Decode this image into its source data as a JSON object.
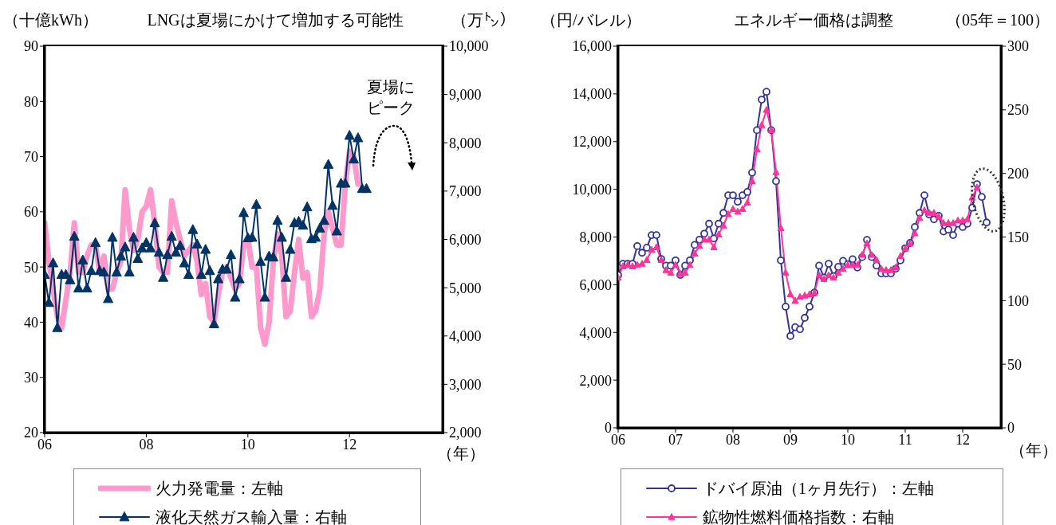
{
  "chart_data": [
    {
      "type": "line",
      "title": "LNGは夏場にかけて増加する可能性",
      "ylabel": "（十億kWh）",
      "y2label": "（万㌧）",
      "xlabel": "（年）",
      "legend": "bottom",
      "annotations": [
        "夏場にピーク"
      ],
      "xlim": [
        "2006-01",
        "2013-11"
      ],
      "xticks": [
        {
          "value": "2006-01",
          "label": "06"
        },
        {
          "value": "2008-01",
          "label": "08"
        },
        {
          "value": "2010-01",
          "label": "10"
        },
        {
          "value": "2012-01",
          "label": "12"
        }
      ],
      "ylim": [
        20,
        90
      ],
      "yticks": [
        20,
        30,
        40,
        50,
        60,
        70,
        80,
        90
      ],
      "y2lim": [
        2000,
        10000
      ],
      "y2ticks": [
        {
          "value": 2000,
          "label": "2,000"
        },
        {
          "value": 3000,
          "label": "3,000"
        },
        {
          "value": 4000,
          "label": "4,000"
        },
        {
          "value": 5000,
          "label": "5,000"
        },
        {
          "value": 6000,
          "label": "6,000"
        },
        {
          "value": 7000,
          "label": "7,000"
        },
        {
          "value": 8000,
          "label": "8,000"
        },
        {
          "value": 9000,
          "label": "9,000"
        },
        {
          "value": 10000,
          "label": "10,000"
        }
      ],
      "series": [
        {
          "name": "火力発電量：左軸",
          "color": "#ff99cc",
          "marker": "none",
          "x": [
            "2006-01",
            "2006-02",
            "2006-03",
            "2006-04",
            "2006-05",
            "2006-06",
            "2006-07",
            "2006-08",
            "2006-09",
            "2006-10",
            "2006-11",
            "2006-12",
            "2007-01",
            "2007-02",
            "2007-03",
            "2007-04",
            "2007-05",
            "2007-06",
            "2007-07",
            "2007-08",
            "2007-09",
            "2007-10",
            "2007-11",
            "2007-12",
            "2008-01",
            "2008-02",
            "2008-03",
            "2008-04",
            "2008-05",
            "2008-06",
            "2008-07",
            "2008-08",
            "2008-09",
            "2008-10",
            "2008-11",
            "2008-12",
            "2009-01",
            "2009-02",
            "2009-03",
            "2009-04",
            "2009-05",
            "2009-06",
            "2009-07",
            "2009-08",
            "2009-09",
            "2009-10",
            "2009-11",
            "2009-12",
            "2010-01",
            "2010-02",
            "2010-03",
            "2010-04",
            "2010-05",
            "2010-06",
            "2010-07",
            "2010-08",
            "2010-09",
            "2010-10",
            "2010-11",
            "2010-12",
            "2011-01",
            "2011-02",
            "2011-03",
            "2011-04",
            "2011-05",
            "2011-06",
            "2011-07",
            "2011-08",
            "2011-09",
            "2011-10",
            "2011-11",
            "2011-12",
            "2012-01",
            "2012-02",
            "2012-03"
          ],
          "values": [
            58,
            51,
            46,
            41,
            39,
            44,
            49,
            58,
            49,
            49,
            52,
            54,
            54,
            49,
            52,
            46,
            46,
            49,
            51,
            64,
            57,
            53,
            55,
            60,
            61,
            64,
            58,
            50,
            49,
            49,
            62,
            58,
            55,
            52,
            53,
            54,
            51,
            45,
            47,
            41,
            40,
            45,
            49,
            50,
            48,
            46,
            47,
            54,
            55,
            50,
            50,
            39,
            36,
            40,
            51,
            56,
            52,
            41,
            42,
            49,
            55,
            48,
            49,
            41,
            42,
            46,
            56,
            60,
            57,
            54,
            54,
            65,
            71,
            70,
            65
          ]
        },
        {
          "name": "液化天然ガス輸入量：右軸",
          "color": "#003366",
          "marker": "triangle",
          "axis": "y2",
          "x": [
            "2006-01",
            "2006-02",
            "2006-03",
            "2006-04",
            "2006-05",
            "2006-06",
            "2006-07",
            "2006-08",
            "2006-09",
            "2006-10",
            "2006-11",
            "2006-12",
            "2007-01",
            "2007-02",
            "2007-03",
            "2007-04",
            "2007-05",
            "2007-06",
            "2007-07",
            "2007-08",
            "2007-09",
            "2007-10",
            "2007-11",
            "2007-12",
            "2008-01",
            "2008-02",
            "2008-03",
            "2008-04",
            "2008-05",
            "2008-06",
            "2008-07",
            "2008-08",
            "2008-09",
            "2008-10",
            "2008-11",
            "2008-12",
            "2009-01",
            "2009-02",
            "2009-03",
            "2009-04",
            "2009-05",
            "2009-06",
            "2009-07",
            "2009-08",
            "2009-09",
            "2009-10",
            "2009-11",
            "2009-12",
            "2010-01",
            "2010-02",
            "2010-03",
            "2010-04",
            "2010-05",
            "2010-06",
            "2010-07",
            "2010-08",
            "2010-09",
            "2010-10",
            "2010-11",
            "2010-12",
            "2011-01",
            "2011-02",
            "2011-03",
            "2011-04",
            "2011-05",
            "2011-06",
            "2011-07",
            "2011-08",
            "2011-09",
            "2011-10",
            "2011-11",
            "2011-12",
            "2012-01",
            "2012-02",
            "2012-03",
            "2012-04",
            "2012-05"
          ],
          "values": [
            5270,
            4690,
            5510,
            4170,
            5270,
            5270,
            5160,
            6060,
            4990,
            5570,
            4990,
            5350,
            5930,
            5350,
            5320,
            4770,
            6040,
            5320,
            5650,
            5840,
            5320,
            6040,
            5600,
            5820,
            5930,
            5820,
            6340,
            5730,
            5210,
            5680,
            6060,
            5730,
            5870,
            5510,
            5270,
            6200,
            5900,
            5270,
            5790,
            5350,
            4250,
            5180,
            5380,
            5380,
            5680,
            4800,
            5180,
            6550,
            6030,
            6040,
            6720,
            5540,
            4800,
            5650,
            5630,
            6390,
            6040,
            5210,
            5790,
            6340,
            6370,
            6290,
            6670,
            6010,
            6040,
            6230,
            6390,
            7550,
            6700,
            6170,
            7160,
            7160,
            8150,
            7660,
            8100,
            7050,
            7050
          ]
        }
      ]
    },
    {
      "type": "line",
      "title": "エネルギー価格は調整",
      "ylabel": "（円/バレル）",
      "y2label": "（05年＝100）",
      "xlabel": "（年）",
      "legend": "bottom",
      "xlim": [
        "2006-01",
        "2012-09"
      ],
      "xticks": [
        {
          "value": "2006-01",
          "label": "06"
        },
        {
          "value": "2007-01",
          "label": "07"
        },
        {
          "value": "2008-01",
          "label": "08"
        },
        {
          "value": "2009-01",
          "label": "09"
        },
        {
          "value": "2010-01",
          "label": "10"
        },
        {
          "value": "2011-01",
          "label": "11"
        },
        {
          "value": "2012-01",
          "label": "12"
        }
      ],
      "ylim": [
        0,
        16000
      ],
      "yticks": [
        0,
        {
          "value": 2000,
          "label": "2,000"
        },
        {
          "value": 4000,
          "label": "4,000"
        },
        {
          "value": 6000,
          "label": "6,000"
        },
        {
          "value": 8000,
          "label": "8,000"
        },
        {
          "value": 10000,
          "label": "10,000"
        },
        {
          "value": 12000,
          "label": "12,000"
        },
        {
          "value": 14000,
          "label": "14,000"
        },
        {
          "value": 16000,
          "label": "16,000"
        }
      ],
      "y2lim": [
        0,
        300
      ],
      "y2ticks": [
        0,
        50,
        100,
        150,
        200,
        250,
        300
      ],
      "series": [
        {
          "name": "ドバイ原油（1ヶ月先行）：左軸",
          "color": "#333399",
          "marker": "circle",
          "x": [
            "2006-01",
            "2006-02",
            "2006-03",
            "2006-04",
            "2006-05",
            "2006-06",
            "2006-07",
            "2006-08",
            "2006-09",
            "2006-10",
            "2006-11",
            "2006-12",
            "2007-01",
            "2007-02",
            "2007-03",
            "2007-04",
            "2007-05",
            "2007-06",
            "2007-07",
            "2007-08",
            "2007-09",
            "2007-10",
            "2007-11",
            "2007-12",
            "2008-01",
            "2008-02",
            "2008-03",
            "2008-04",
            "2008-05",
            "2008-06",
            "2008-07",
            "2008-08",
            "2008-09",
            "2008-10",
            "2008-11",
            "2008-12",
            "2009-01",
            "2009-02",
            "2009-03",
            "2009-04",
            "2009-05",
            "2009-06",
            "2009-07",
            "2009-08",
            "2009-09",
            "2009-10",
            "2009-11",
            "2009-12",
            "2010-01",
            "2010-02",
            "2010-03",
            "2010-04",
            "2010-05",
            "2010-06",
            "2010-07",
            "2010-08",
            "2010-09",
            "2010-10",
            "2010-11",
            "2010-12",
            "2011-01",
            "2011-02",
            "2011-03",
            "2011-04",
            "2011-05",
            "2011-06",
            "2011-07",
            "2011-08",
            "2011-09",
            "2011-10",
            "2011-11",
            "2011-12",
            "2012-01",
            "2012-02",
            "2012-03",
            "2012-04",
            "2012-05",
            "2012-06"
          ],
          "values": [
            6400,
            6880,
            6880,
            6880,
            7620,
            7340,
            7550,
            8080,
            8080,
            7080,
            6800,
            6800,
            7020,
            6410,
            6800,
            7020,
            7670,
            7890,
            8140,
            8560,
            7940,
            8560,
            9010,
            9750,
            9750,
            9480,
            9750,
            9890,
            10700,
            12480,
            13760,
            14090,
            12480,
            10340,
            7020,
            5080,
            3850,
            4220,
            4130,
            4610,
            5080,
            5670,
            6800,
            6300,
            6880,
            6360,
            6750,
            7000,
            6860,
            7070,
            6720,
            7160,
            7880,
            7160,
            6800,
            6470,
            6470,
            6470,
            6670,
            7020,
            7530,
            7750,
            8420,
            9010,
            9750,
            8940,
            8740,
            8890,
            8230,
            8310,
            8080,
            8560,
            8420,
            8560,
            9230,
            10220,
            9680,
            8610
          ]
        },
        {
          "name": "鉱物性燃料価格指数：右軸",
          "color": "#ff3399",
          "marker": "triangle",
          "axis": "y2",
          "x": [
            "2006-01",
            "2006-02",
            "2006-03",
            "2006-04",
            "2006-05",
            "2006-06",
            "2006-07",
            "2006-08",
            "2006-09",
            "2006-10",
            "2006-11",
            "2006-12",
            "2007-01",
            "2007-02",
            "2007-03",
            "2007-04",
            "2007-05",
            "2007-06",
            "2007-07",
            "2007-08",
            "2007-09",
            "2007-10",
            "2007-11",
            "2007-12",
            "2008-01",
            "2008-02",
            "2008-03",
            "2008-04",
            "2008-05",
            "2008-06",
            "2008-07",
            "2008-08",
            "2008-09",
            "2008-10",
            "2008-11",
            "2008-12",
            "2009-01",
            "2009-02",
            "2009-03",
            "2009-04",
            "2009-05",
            "2009-06",
            "2009-07",
            "2009-08",
            "2009-09",
            "2009-10",
            "2009-11",
            "2009-12",
            "2010-01",
            "2010-02",
            "2010-03",
            "2010-04",
            "2010-05",
            "2010-06",
            "2010-07",
            "2010-08",
            "2010-09",
            "2010-10",
            "2010-11",
            "2010-12",
            "2011-01",
            "2011-02",
            "2011-03",
            "2011-04",
            "2011-05",
            "2011-06",
            "2011-07",
            "2011-08",
            "2011-09",
            "2011-10",
            "2011-11",
            "2011-12",
            "2012-01",
            "2012-02",
            "2012-03",
            "2012-04"
          ],
          "values": [
            118,
            127,
            128,
            127,
            128,
            129,
            132,
            140,
            142,
            132,
            124,
            122,
            128,
            121,
            122,
            128,
            137,
            143,
            148,
            148,
            142,
            152,
            159,
            168,
            172,
            170,
            172,
            177,
            194,
            219,
            238,
            250,
            234,
            201,
            157,
            122,
            105,
            100,
            103,
            104,
            105,
            106,
            120,
            117,
            120,
            118,
            122,
            125,
            128,
            128,
            128,
            136,
            145,
            136,
            132,
            125,
            124,
            124,
            126,
            135,
            141,
            145,
            153,
            165,
            171,
            169,
            169,
            166,
            161,
            161,
            161,
            163,
            163,
            164,
            181,
            189
          ]
        }
      ]
    }
  ]
}
